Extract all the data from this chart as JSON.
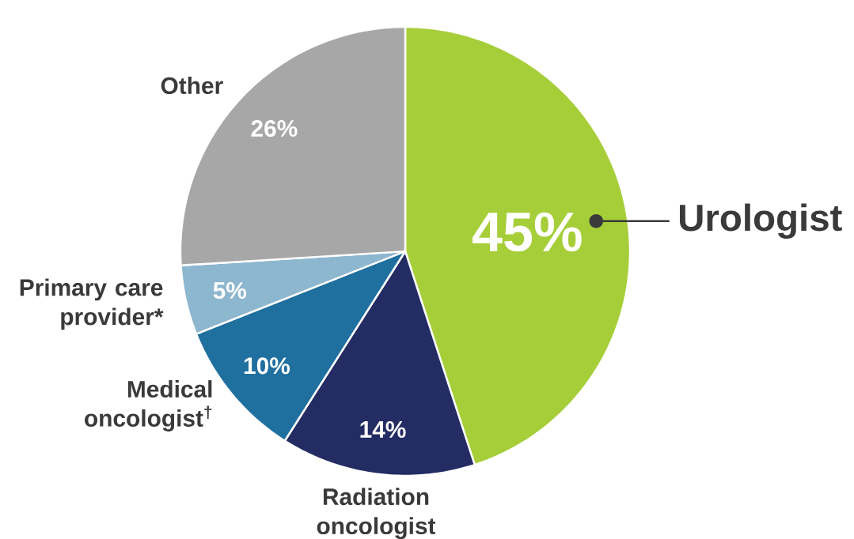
{
  "chart_data": {
    "type": "pie",
    "categories": [
      "Urologist",
      "Radiation oncologist",
      "Medical oncologist$^{†}$",
      "Primary care provider*",
      "Other"
    ],
    "values": [
      45,
      14,
      10,
      5,
      26
    ],
    "colors": [
      "#a6ce39",
      "#232c63",
      "#1f6f9f",
      "#8db6cf",
      "#a7a7a7"
    ],
    "value_labels": [
      "45%",
      "14%",
      "10%",
      "5%",
      "26%"
    ]
  }
}
